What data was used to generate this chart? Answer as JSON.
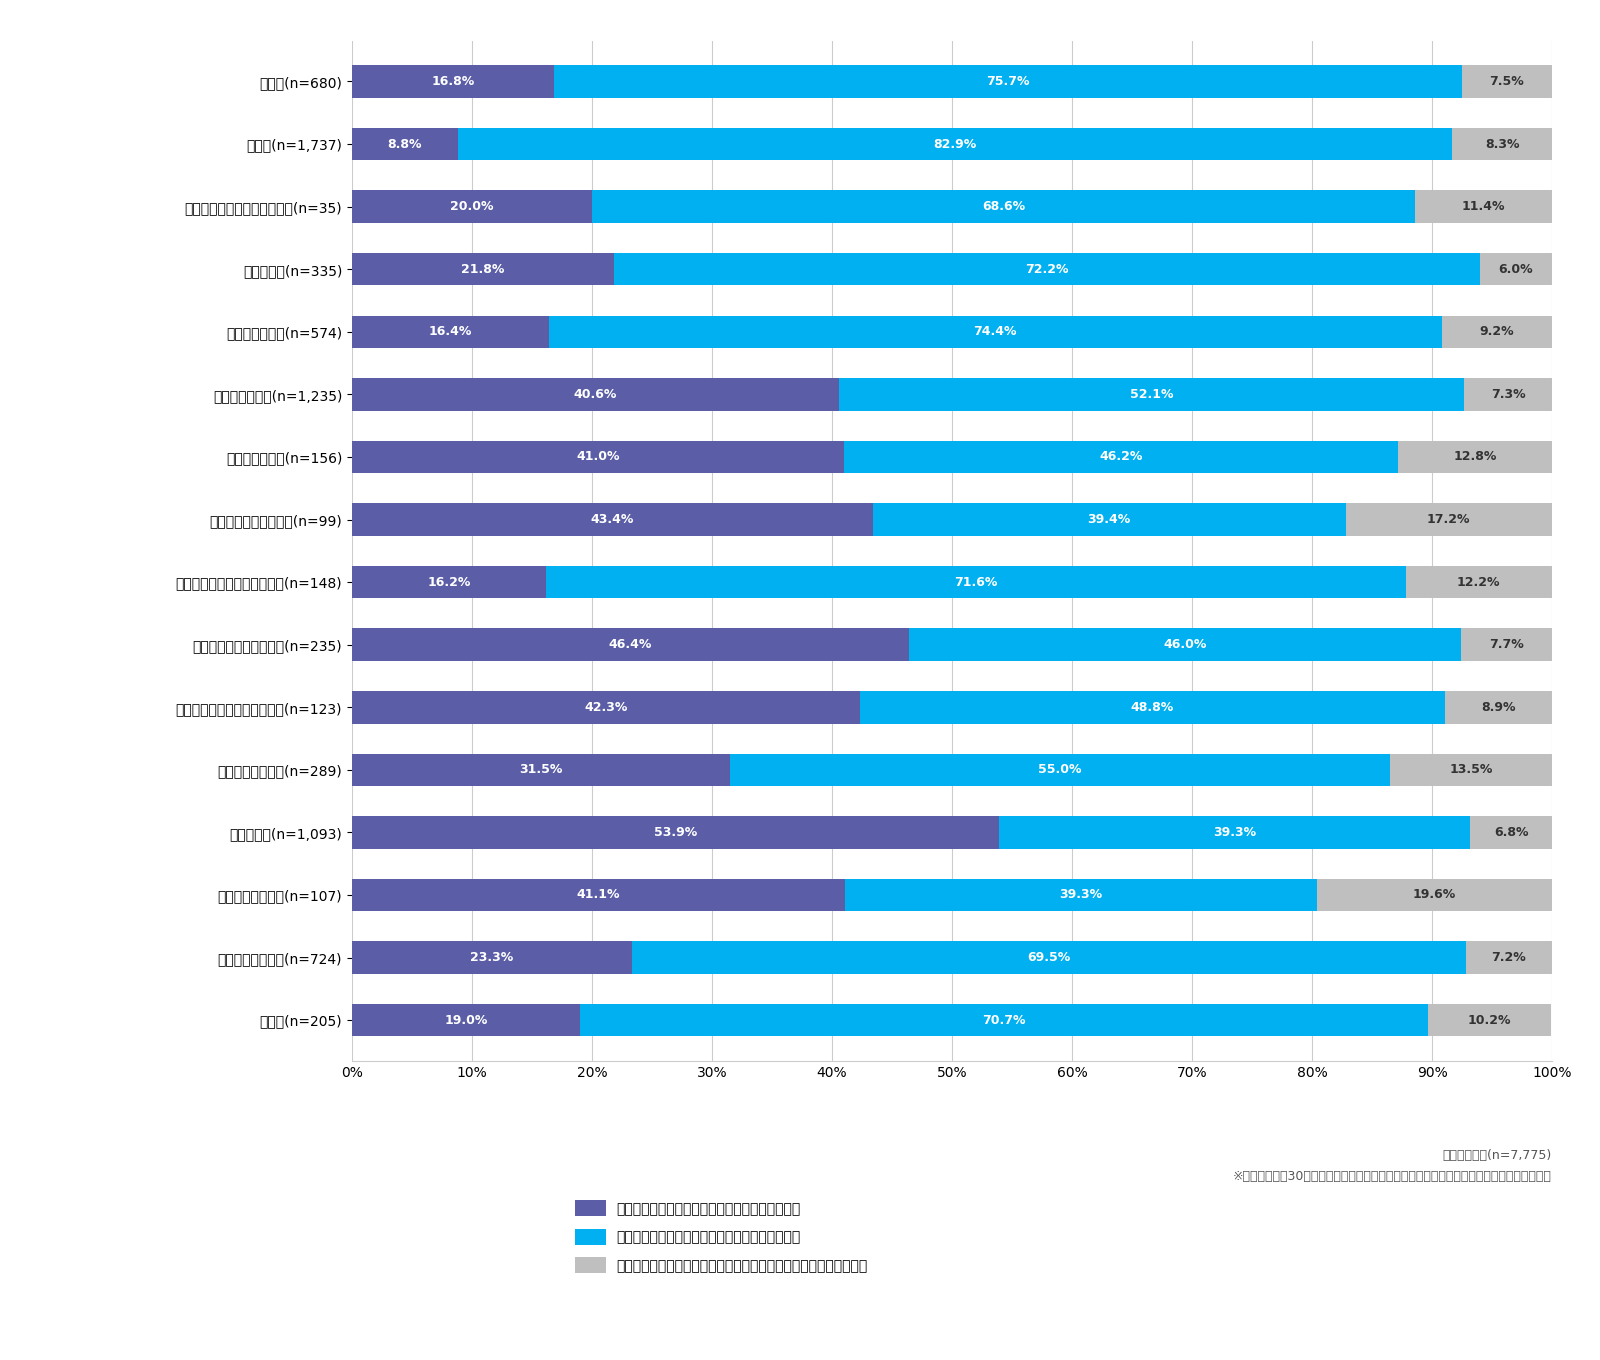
{
  "categories": [
    "建設業(n=680)",
    "製造業(n=1,737)",
    "電気・ガス・熱供給・水道業(n=35)",
    "情報通信業(n=335)",
    "運輸業、郵便業(n=574)",
    "卸売業、小売業(n=1,235)",
    "金融業、保険業(n=156)",
    "不動産業、物品賃貸業(n=99)",
    "学術研究、専門・サービス業(n=148)",
    "宿泊業、飲食サービス業(n=235)",
    "生活関連サービス業、娯楽業(n=123)",
    "教育、学習支援業(n=289)",
    "医療、福祉(n=1,093)",
    "複合サービス事業(n=107)",
    "その他サービス業(n=724)",
    "その他(n=205)"
  ],
  "values_yes": [
    16.8,
    8.8,
    20.0,
    21.8,
    16.4,
    40.6,
    41.0,
    43.4,
    16.2,
    46.4,
    42.3,
    31.5,
    53.9,
    41.1,
    23.3,
    19.0
  ],
  "values_no": [
    75.7,
    82.9,
    68.6,
    72.2,
    74.4,
    52.1,
    46.2,
    39.4,
    71.6,
    46.0,
    48.8,
    55.0,
    39.3,
    39.3,
    69.5,
    70.7
  ],
  "values_unknown": [
    7.5,
    8.3,
    11.4,
    6.0,
    9.2,
    7.3,
    12.8,
    17.2,
    12.2,
    7.7,
    8.9,
    13.5,
    6.8,
    19.6,
    7.2,
    10.2
  ],
  "color_yes": "#5b5ea6",
  "color_no": "#00b0f0",
  "color_unknown": "#bfbfbf",
  "legend_yes": "顧客等からの著しい辷惑行為に関する相談がある",
  "legend_no": "顧客等からの著しい辷惑行為に関する相談はない",
  "legend_unknown": "顧客等からの著しい辷惑行為に関する相談の有無を把握していない",
  "note1": "対象：全企業(n=7,775)",
  "note2": "※サンプル数が30未満の「農林漁業」、「鉱業、採石業」は「その他」としてまとめている",
  "label_fontsize": 9,
  "tick_fontsize": 10,
  "bar_height": 0.52,
  "figsize": [
    16.0,
    13.6
  ],
  "dpi": 100
}
